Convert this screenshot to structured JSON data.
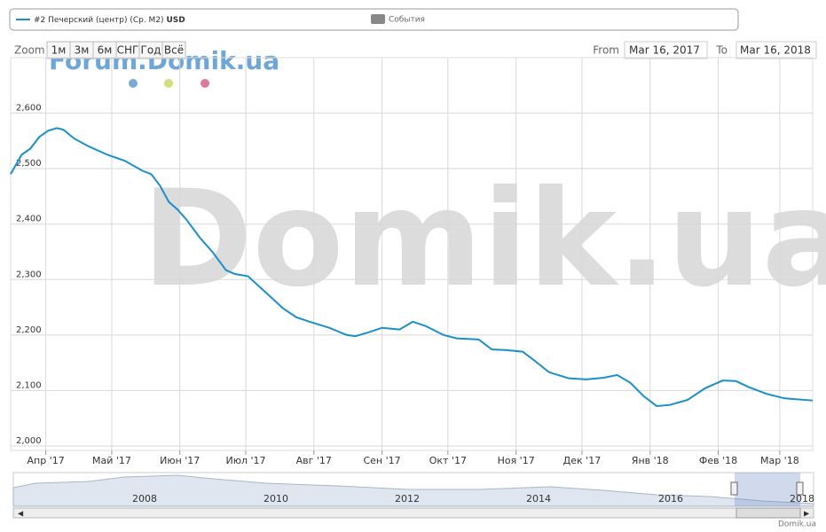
{
  "chart_data": {
    "type": "line",
    "watermark": "Domik.ua",
    "forum_watermark": "Forum.Domik.ua",
    "series": [
      {
        "name": "#2 Печерский (центр) (Ср. М2)",
        "unit": "USD",
        "color": "#1a8fc9",
        "values": [
          2490,
          2525,
          2536,
          2557,
          2568,
          2573,
          2570,
          2554,
          2541,
          2525,
          2514,
          2496,
          2490,
          2469,
          2440,
          2426,
          2408,
          2376,
          2349,
          2317,
          2310,
          2306,
          2277,
          2248,
          2232,
          2224,
          2213,
          2200,
          2198,
          2205,
          2213,
          2210,
          2224,
          2216,
          2200,
          2194,
          2192,
          2174,
          2173,
          2170,
          2152,
          2133,
          2122,
          2120,
          2123,
          2128,
          2114,
          2090,
          2072,
          2074,
          2083,
          2104,
          2118,
          2117,
          2106,
          2094,
          2086,
          2082
        ]
      }
    ],
    "x": [
      "2017-03-16",
      "2017-03-21",
      "2017-03-25",
      "2017-03-29",
      "2017-04-02",
      "2017-04-06",
      "2017-04-09",
      "2017-04-14",
      "2017-04-20",
      "2017-04-29",
      "2017-05-07",
      "2017-05-15",
      "2017-05-19",
      "2017-05-23",
      "2017-05-27",
      "2017-05-31",
      "2017-06-04",
      "2017-06-10",
      "2017-06-16",
      "2017-06-22",
      "2017-06-26",
      "2017-07-02",
      "2017-07-10",
      "2017-07-18",
      "2017-07-24",
      "2017-07-30",
      "2017-08-08",
      "2017-08-16",
      "2017-08-20",
      "2017-08-26",
      "2017-09-01",
      "2017-09-09",
      "2017-09-15",
      "2017-09-21",
      "2017-09-29",
      "2017-10-05",
      "2017-10-15",
      "2017-10-21",
      "2017-10-27",
      "2017-11-04",
      "2017-11-10",
      "2017-11-16",
      "2017-11-25",
      "2017-12-03",
      "2017-12-11",
      "2017-12-17",
      "2017-12-23",
      "2017-12-29",
      "2018-01-04",
      "2018-01-10",
      "2018-01-18",
      "2018-01-26",
      "2018-02-03",
      "2018-02-09",
      "2018-02-15",
      "2018-02-23",
      "2018-03-03",
      "2018-03-16"
    ],
    "events_label": "События",
    "xlim": [
      "2017-03-16",
      "2018-03-16"
    ],
    "xticks": [
      {
        "value": "2017-04-01",
        "label": "Апр '17"
      },
      {
        "value": "2017-05-01",
        "label": "Май '17"
      },
      {
        "value": "2017-06-01",
        "label": "Июн '17"
      },
      {
        "value": "2017-07-01",
        "label": "Июл '17"
      },
      {
        "value": "2017-08-01",
        "label": "Авг '17"
      },
      {
        "value": "2017-09-01",
        "label": "Сен '17"
      },
      {
        "value": "2017-10-01",
        "label": "Окт '17"
      },
      {
        "value": "2017-11-01",
        "label": "Ноя '17"
      },
      {
        "value": "2017-12-01",
        "label": "Дек '17"
      },
      {
        "value": "2018-01-01",
        "label": "Янв '18"
      },
      {
        "value": "2018-02-01",
        "label": "Фев '18"
      },
      {
        "value": "2018-03-01",
        "label": "Мар '18"
      }
    ],
    "ylim": [
      1992,
      2700
    ],
    "yticks": [
      {
        "value": 2000,
        "label": "2,000"
      },
      {
        "value": 2100,
        "label": "2,100"
      },
      {
        "value": 2200,
        "label": "2,200"
      },
      {
        "value": 2300,
        "label": "2,300"
      },
      {
        "value": 2400,
        "label": "2,400"
      },
      {
        "value": 2500,
        "label": "2,500"
      },
      {
        "value": 2600,
        "label": "2,600"
      }
    ],
    "grid": true,
    "range_selector": {
      "label": "Zoom",
      "buttons": [
        "1м",
        "3м",
        "6м",
        "СНГ",
        "Год",
        "Всё"
      ],
      "from_label": "From",
      "from": "Mar 16, 2017",
      "to_label": "To",
      "to": "Mar 16, 2018"
    },
    "navigator_years": [
      "2008",
      "2010",
      "2012",
      "2014",
      "2016",
      "2018"
    ],
    "credit": "Domik.ua"
  }
}
